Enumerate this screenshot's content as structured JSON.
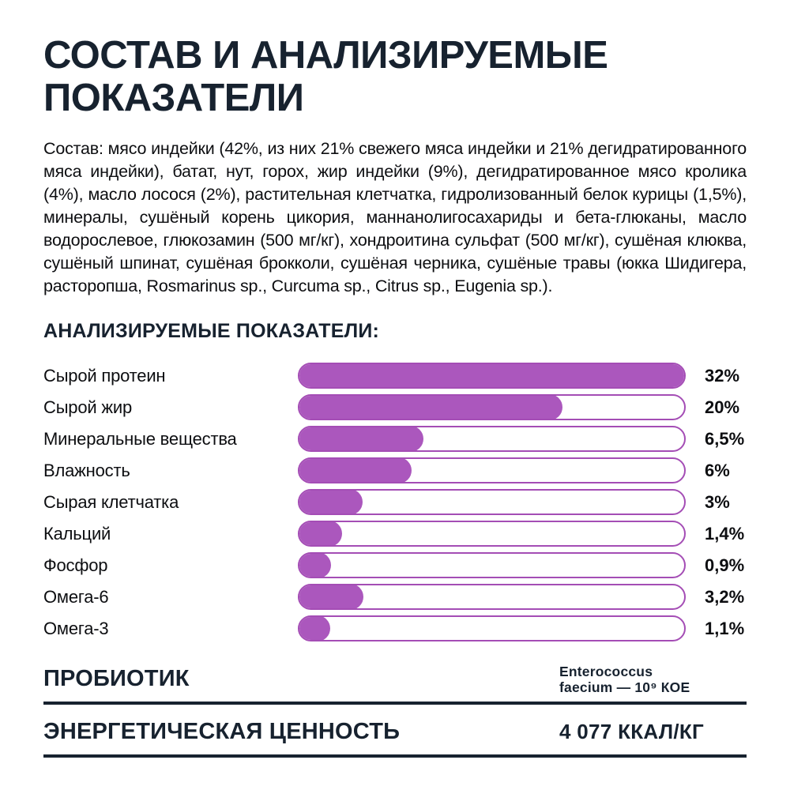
{
  "page": {
    "title": "СОСТАВ И АНАЛИЗИРУЕМЫЕ ПОКАЗАТЕЛИ",
    "composition_paragraph": "Состав: мясо индейки (42%, из них 21% свежего мяса индейки и 21% дегидратированного мяса индейки), батат, нут, горох, жир индейки (9%), дегидратированное мясо кролика (4%), масло лосося (2%), растительная клетчатка, гидролизованный белок курицы (1,5%), минералы, сушёный корень цикория, маннанолигосахариды и бета-глюканы, масло водорослевое, глюкозамин (500 мг/кг), хондроитина сульфат (500 мг/кг), сушёная клюква, сушёный шпинат, сушёная брокколи, сушёная черника, сушёные травы (юкка Шидигера, расторопша, Rosmarinus sp., Curcuma sp., Citrus sp., Eugenia sp.).",
    "section_header": "АНАЛИЗИРУЕМЫЕ ПОКАЗАТЕЛИ:"
  },
  "chart_data": {
    "type": "bar",
    "orientation": "horizontal",
    "title": "АНАЛИЗИРУЕМЫЕ ПОКАЗАТЕЛИ",
    "categories": [
      "Сырой протеин",
      "Сырой жир",
      "Минеральные вещества",
      "Влажность",
      "Сырая клетчатка",
      "Кальций",
      "Фосфор",
      "Омега-6",
      "Омега-3"
    ],
    "values": [
      32,
      20,
      6.5,
      6,
      3,
      1.4,
      0.9,
      3.2,
      1.1
    ],
    "value_labels": [
      "32%",
      "20%",
      "6,5%",
      "6%",
      "3%",
      "1,4%",
      "0,9%",
      "3,2%",
      "1,1%"
    ],
    "bar_fill_pct": [
      100,
      68,
      31.8,
      28.7,
      16,
      10.7,
      7.8,
      16.2,
      7.6
    ],
    "unit": "%",
    "xlim": [
      0,
      32
    ],
    "grid": false,
    "legend": false,
    "bar_color": "#ab57bd",
    "track_border_color": "#a44db5",
    "track_background": "#ffffff"
  },
  "probiotic": {
    "label": "ПРОБИОТИК",
    "value_line1": "Enterococcus",
    "value_line2": "faecium — 10⁹ КОЕ"
  },
  "energy": {
    "label": "ЭНЕРГЕТИЧЕСКАЯ ЦЕННОСТЬ",
    "value": "4 077 ККАЛ/КГ"
  },
  "colors": {
    "background": "#ffffff",
    "heading": "#17222f",
    "body_text": "#0d0e11",
    "bar_fill": "#ab57bd",
    "bar_border": "#a44db5",
    "rule": "#17222f"
  }
}
